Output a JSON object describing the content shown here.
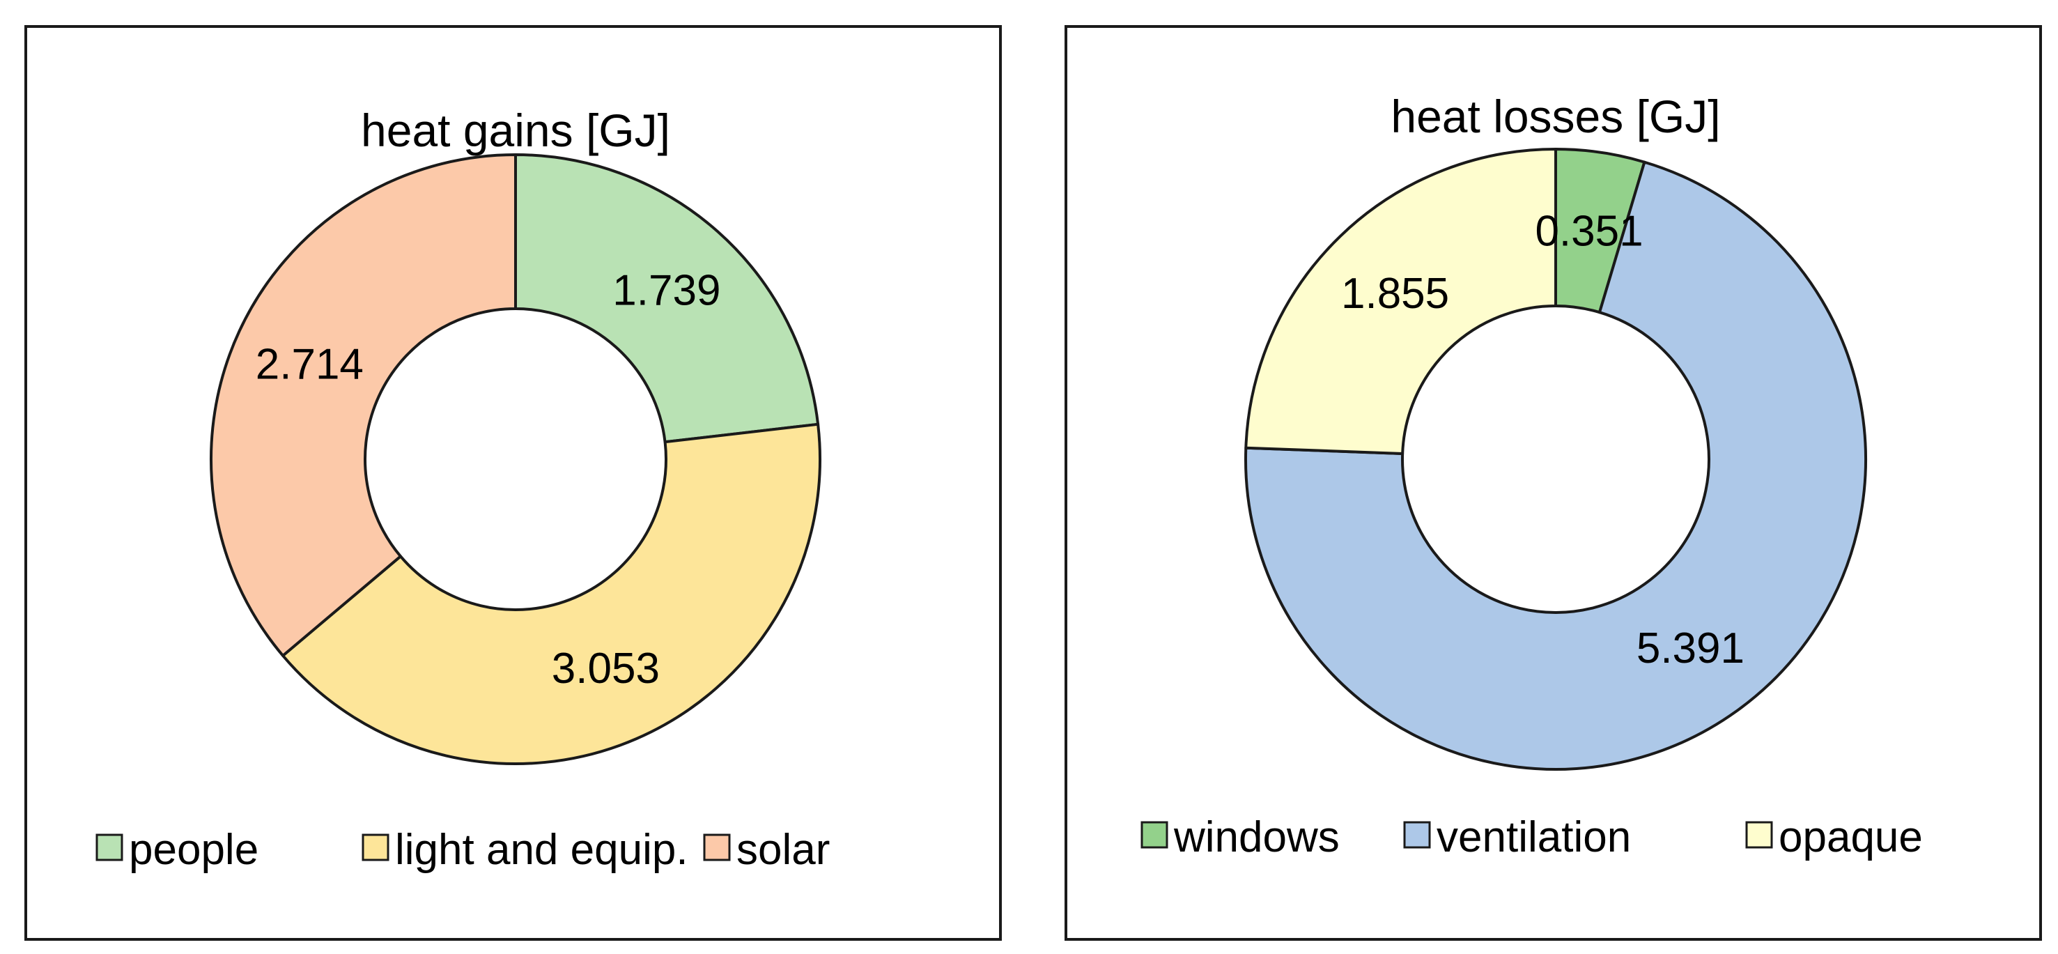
{
  "chart_data": [
    {
      "type": "pie",
      "variant": "donut",
      "title": "heat gains  [GJ]",
      "categories": [
        "people",
        "light and equip.",
        "solar"
      ],
      "values": [
        1.739,
        3.053,
        2.714
      ],
      "value_labels": [
        "1.739",
        "3.053",
        "2.714"
      ],
      "colors": [
        "#b9e2b4",
        "#fde599",
        "#fcc9a9"
      ],
      "legend": "bottom"
    },
    {
      "type": "pie",
      "variant": "donut",
      "title": "heat losses  [GJ]",
      "categories": [
        "windows",
        "ventilation",
        "opaque"
      ],
      "values": [
        0.351,
        5.391,
        1.855
      ],
      "value_labels": [
        "0.351",
        "5.391",
        "1.855"
      ],
      "colors": [
        "#93d18b",
        "#adc8e8",
        "#fefdce"
      ],
      "legend": "bottom"
    }
  ]
}
